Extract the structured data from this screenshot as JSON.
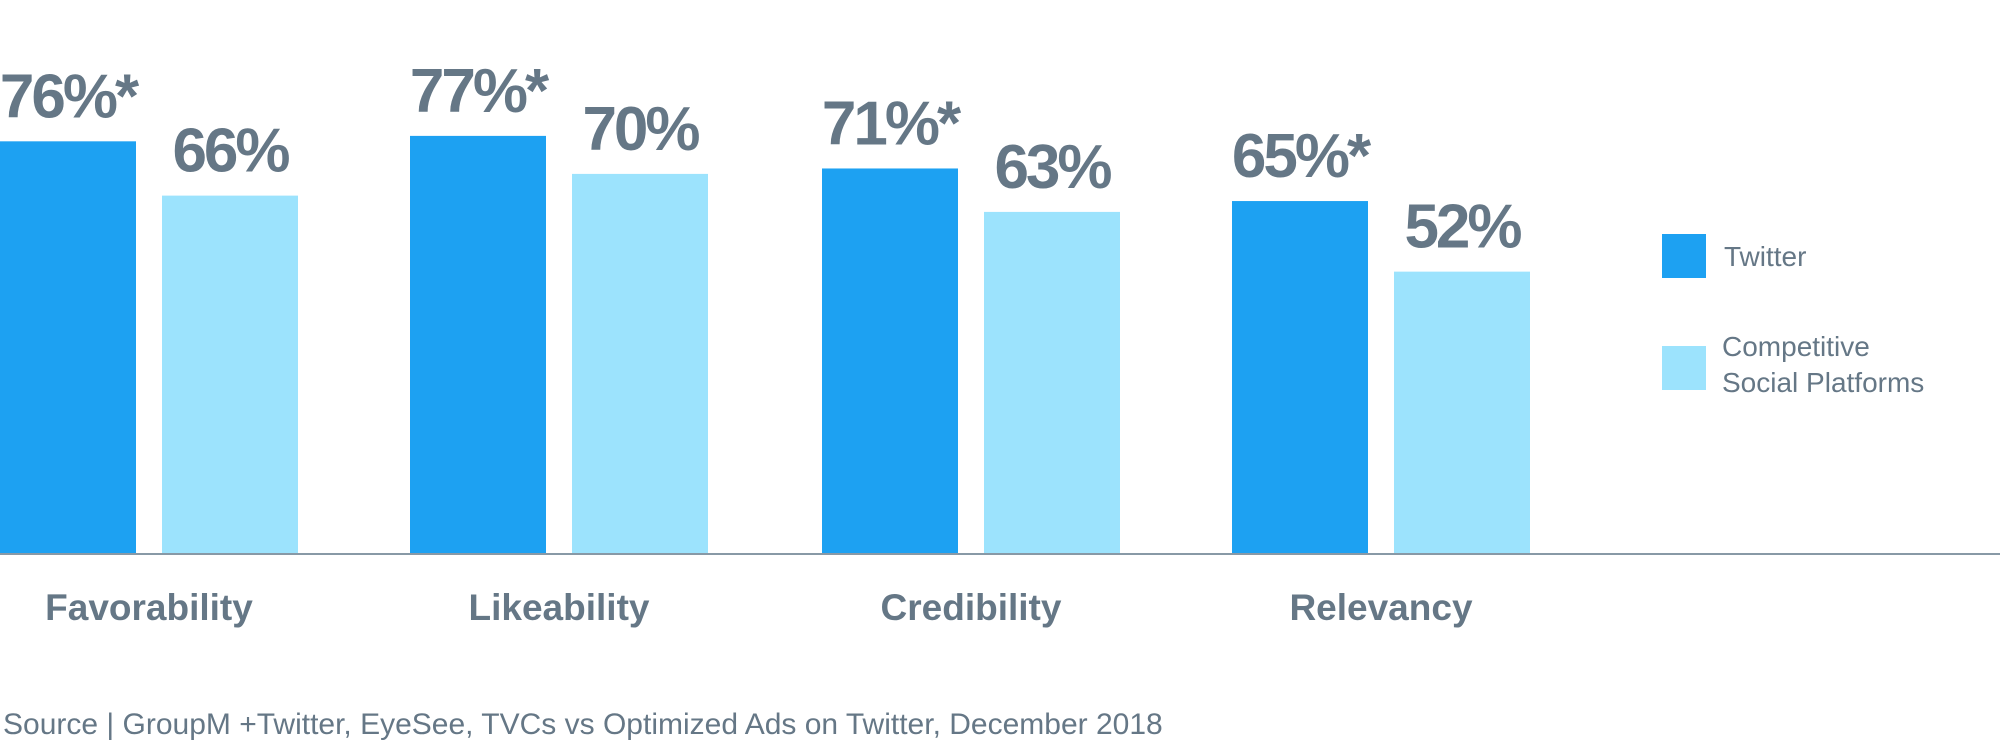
{
  "chart_data": {
    "type": "bar",
    "categories": [
      "Favorability",
      "Likeability",
      "Credibility",
      "Relevancy"
    ],
    "series": [
      {
        "name": "Twitter",
        "color": "#1da1f2",
        "values": [
          76,
          77,
          71,
          65
        ],
        "labels": [
          "76%*",
          "77%*",
          "71%*",
          "65%*"
        ]
      },
      {
        "name": "Competitive Social Platforms",
        "name_lines": [
          "Competitive",
          "Social Platforms"
        ],
        "color": "#9ce3fd",
        "values": [
          66,
          70,
          63,
          52
        ],
        "labels": [
          "66%",
          "70%",
          "63%",
          "52%"
        ]
      }
    ],
    "ylim": [
      0,
      100
    ],
    "grid": false,
    "legend_position": "right",
    "text_color": "#657786",
    "axis_color": "#8899a6"
  },
  "footer": {
    "source": "Source | GroupM +Twitter, EyeSee, TVCs vs Optimized Ads on Twitter, December 2018"
  }
}
